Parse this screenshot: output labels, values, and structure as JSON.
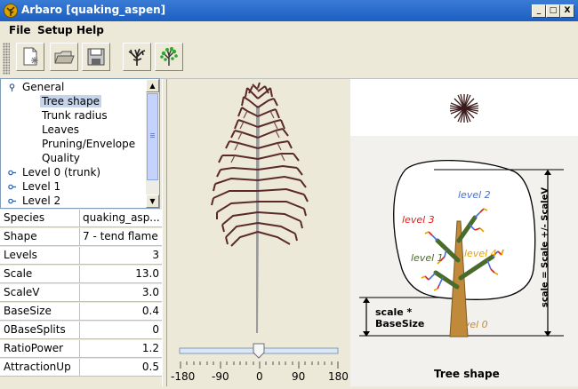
{
  "window": {
    "title": "Arbaro [quaking_aspen]",
    "controls": [
      "_",
      "□",
      "X"
    ]
  },
  "menu": [
    "File",
    "Setup",
    "Help"
  ],
  "toolbar": {
    "buttons": [
      "new-icon",
      "open-icon",
      "save-icon",
      "render-tree-icon",
      "render-leaves-icon"
    ]
  },
  "tree_nav": {
    "items": [
      {
        "label": "General",
        "level": 0,
        "expanded": true
      },
      {
        "label": "Tree shape",
        "level": 1,
        "selected": true
      },
      {
        "label": "Trunk radius",
        "level": 1
      },
      {
        "label": "Leaves",
        "level": 1
      },
      {
        "label": "Pruning/Envelope",
        "level": 1
      },
      {
        "label": "Quality",
        "level": 1
      },
      {
        "label": "Level 0 (trunk)",
        "level": 0
      },
      {
        "label": "Level 1",
        "level": 0
      },
      {
        "label": "Level 2",
        "level": 0
      }
    ]
  },
  "properties": [
    {
      "name": "Species",
      "value": "quaking_asp..."
    },
    {
      "name": "Shape",
      "value": "7 - tend flame"
    },
    {
      "name": "Levels",
      "value": "3"
    },
    {
      "name": "Scale",
      "value": "13.0"
    },
    {
      "name": "ScaleV",
      "value": "3.0"
    },
    {
      "name": "BaseSize",
      "value": "0.4"
    },
    {
      "name": "0BaseSplits",
      "value": "0"
    },
    {
      "name": "RatioPower",
      "value": "1.2"
    },
    {
      "name": "AttractionUp",
      "value": "0.5"
    }
  ],
  "rotation_slider": {
    "value": 0,
    "ticks": [
      "-180",
      "-90",
      "0",
      "90",
      "180"
    ]
  },
  "diagram": {
    "caption": "Tree shape",
    "labels": {
      "level0": "level 0",
      "level1": "level 1",
      "level2": "level 2",
      "level3": "level 3",
      "level4": "level 4",
      "basesize_line1": "scale *",
      "basesize_line2": "BaseSize",
      "scale_formula": "scale = Scale +/- ScaleV"
    },
    "colors": {
      "level0": "#c08a3a",
      "level1": "#4a6b2a",
      "level2": "#4a6fd8",
      "level3": "#e0201c",
      "level4": "#e8a000"
    }
  }
}
